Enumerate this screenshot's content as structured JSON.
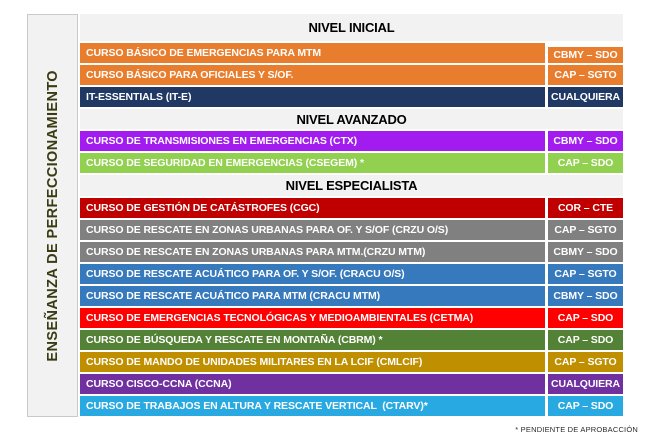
{
  "sidebar": {
    "label": "ENSEÑANZA DE PERFECCIONAMIENTO"
  },
  "footnote": "* PENDIENTE DE APROBACCIÓN",
  "colors": {
    "page_bg": "#FFFFFF",
    "sidebar_bg": "#F2F2F2",
    "sidebar_text": "#3B3B12",
    "section_header_bg": "#F2F2F2",
    "row_text": "#FFFFFF"
  },
  "sections": [
    {
      "title": "NIVEL INICIAL",
      "rows": [
        {
          "course": "CURSO BÁSICO DE EMERGENCIAS PARA MTM",
          "rank": "CBMY – SDO",
          "color": "#E87D2E"
        },
        {
          "course": "CURSO BÁSICO PARA OFICIALES Y S/OF.",
          "rank": "CAP – SGTO",
          "color": "#E87D2E"
        },
        {
          "course": "IT-ESSENTIALS (IT-E)",
          "rank": "CUALQUIERA",
          "color": "#1F3864"
        }
      ]
    },
    {
      "title": "NIVEL AVANZADO",
      "rows": [
        {
          "course": "CURSO DE TRANSMISIONES EN EMERGENCIAS (CTX)",
          "rank": "CBMY – SDO",
          "color": "#A21CF0"
        },
        {
          "course": "CURSO DE SEGURIDAD EN EMERGENCIAS (CSEGEM) *",
          "rank": "CAP – SDO",
          "color": "#92D050"
        }
      ]
    },
    {
      "title": "NIVEL ESPECIALISTA",
      "rows": [
        {
          "course": "CURSO DE GESTIÓN DE CATÁSTROFES (CGC)",
          "rank": "COR – CTE",
          "color": "#C00000"
        },
        {
          "course": "CURSO DE RESCATE EN ZONAS URBANAS PARA OF. Y S/OF (CRZU O/S)",
          "rank": "CAP – SGTO",
          "color": "#808080"
        },
        {
          "course": "CURSO DE RESCATE EN ZONAS URBANAS PARA MTM.(CRZU MTM)",
          "rank": "CBMY – SDO",
          "color": "#808080"
        },
        {
          "course": "CURSO DE RESCATE ACUÁTICO PARA OF. Y S/OF. (CRACU O/S)",
          "rank": "CAP – SGTO",
          "color": "#3679BD"
        },
        {
          "course": "CURSO DE RESCATE ACUÁTICO PARA MTM (CRACU MTM)",
          "rank": "CBMY – SDO",
          "color": "#3679BD"
        },
        {
          "course": "CURSO DE EMERGENCIAS TECNOLÓGICAS Y MEDIOAMBIENTALES (CETMA)",
          "rank": "CAP – SDO",
          "color": "#FE0000"
        },
        {
          "course": "CURSO DE BÚSQUEDA Y RESCATE EN MONTAÑA (CBRM) *",
          "rank": "CAP – SDO",
          "color": "#538135"
        },
        {
          "course": "CURSO DE MANDO DE UNIDADES MILITARES EN LA LCIF (CMLCIF)",
          "rank": "CAP – SGTO",
          "color": "#BF8F00"
        },
        {
          "course": "CURSO CISCO-CCNA (CCNA)",
          "rank": "CUALQUIERA",
          "color": "#7030A0"
        },
        {
          "course": "CURSO DE TRABAJOS EN ALTURA Y RESCATE VERTICAL  (CTARV)*",
          "rank": "CAP – SDO",
          "color": "#29A9E1"
        }
      ]
    }
  ]
}
